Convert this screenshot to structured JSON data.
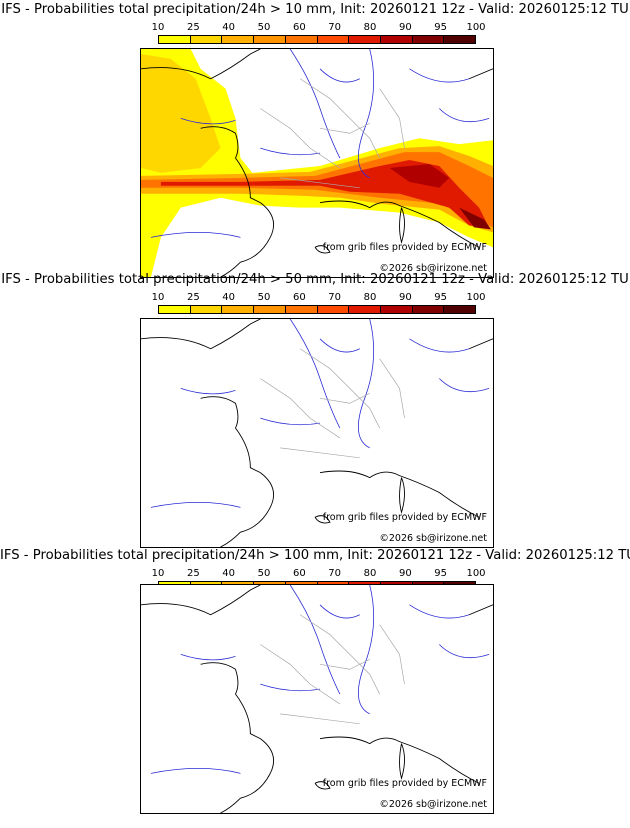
{
  "panels": [
    {
      "title": "IFS - Probabilities total precipitation/24h > 10 mm, Init: 20260121 12z - Valid: 20260125:12 TU",
      "credit": "from grib files provided by ECMWF",
      "copyright": "©2026 sb@irizone.net"
    },
    {
      "title": "IFS - Probabilities total precipitation/24h > 50 mm, Init: 20260121 12z - Valid: 20260125:12 TU",
      "credit": "from grib files provided by ECMWF",
      "copyright": "©2026 sb@irizone.net"
    },
    {
      "title": "IFS - Probabilities total precipitation/24h > 100 mm, Init: 20260121 12z - Valid: 20260125:12 TU",
      "credit": "from grib files provided by ECMWF",
      "copyright": "©2026 sb@irizone.net"
    }
  ],
  "colorbar": {
    "ticks": [
      "10",
      "25",
      "40",
      "50",
      "60",
      "70",
      "80",
      "90",
      "95",
      "100"
    ],
    "colors": [
      "#ffff00",
      "#ffd700",
      "#ffb000",
      "#ff9400",
      "#ff7400",
      "#ff4a00",
      "#e01a00",
      "#b00000",
      "#800000",
      "#500000"
    ]
  },
  "map_colors": {
    "coast": "#000000",
    "rivers": "#2b2bd6",
    "borders": "#a8a8a8"
  }
}
